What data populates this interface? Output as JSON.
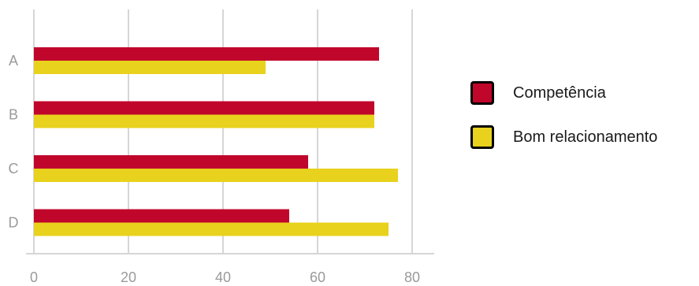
{
  "chart_data": {
    "type": "bar",
    "orientation": "horizontal",
    "categories": [
      "A",
      "B",
      "C",
      "D"
    ],
    "series": [
      {
        "name": "Competência",
        "color": "#c0062b",
        "values": [
          73,
          72,
          58,
          54
        ]
      },
      {
        "name": "Bom relacionamento",
        "color": "#e8d21d",
        "values": [
          49,
          72,
          77,
          75
        ]
      }
    ],
    "x_ticks": [
      "0",
      "20",
      "40",
      "60",
      "80"
    ],
    "xlim": [
      0,
      80
    ],
    "grid": true,
    "legend_position": "right"
  }
}
